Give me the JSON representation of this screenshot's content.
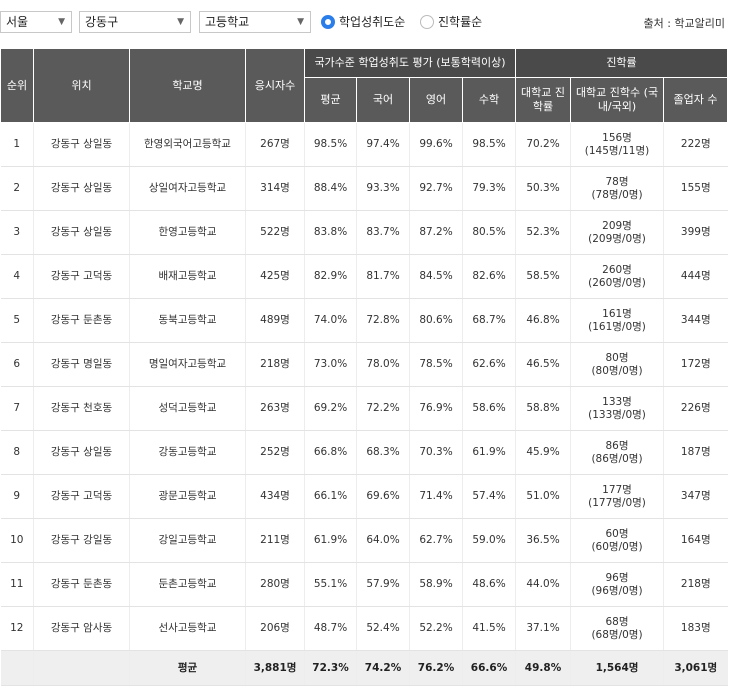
{
  "filters": {
    "region": "서울",
    "district": "강동구",
    "school_type": "고등학교",
    "sort_options": [
      {
        "label": "학업성취도순",
        "selected": true
      },
      {
        "label": "진학률순",
        "selected": false
      }
    ],
    "source": "출처 : 학교알리미"
  },
  "table": {
    "header": {
      "rank": "순위",
      "location": "위치",
      "school": "학교명",
      "applicants": "응시자수",
      "achievement_group": "국가수준 학업성취도 평가 (보통학력이상)",
      "avg": "평균",
      "korean": "국어",
      "english": "영어",
      "math": "수학",
      "advancement_group": "진학률",
      "univ_rate": "대학교 진학률",
      "univ_count": "대학교 진학수 (국내/국외)",
      "graduates": "졸업자 수"
    },
    "rows": [
      {
        "rank": "1",
        "location": "강동구 상일동",
        "school": "한영외국어고등학교",
        "applicants": "267명",
        "avg": "98.5%",
        "korean": "97.4%",
        "english": "99.6%",
        "math": "98.5%",
        "univ_rate": "70.2%",
        "univ_count": "156명",
        "univ_split": "(145명/11명)",
        "graduates": "222명"
      },
      {
        "rank": "2",
        "location": "강동구 상일동",
        "school": "상일여자고등학교",
        "applicants": "314명",
        "avg": "88.4%",
        "korean": "93.3%",
        "english": "92.7%",
        "math": "79.3%",
        "univ_rate": "50.3%",
        "univ_count": "78명",
        "univ_split": "(78명/0명)",
        "graduates": "155명"
      },
      {
        "rank": "3",
        "location": "강동구 상일동",
        "school": "한영고등학교",
        "applicants": "522명",
        "avg": "83.8%",
        "korean": "83.7%",
        "english": "87.2%",
        "math": "80.5%",
        "univ_rate": "52.3%",
        "univ_count": "209명",
        "univ_split": "(209명/0명)",
        "graduates": "399명"
      },
      {
        "rank": "4",
        "location": "강동구 고덕동",
        "school": "배재고등학교",
        "applicants": "425명",
        "avg": "82.9%",
        "korean": "81.7%",
        "english": "84.5%",
        "math": "82.6%",
        "univ_rate": "58.5%",
        "univ_count": "260명",
        "univ_split": "(260명/0명)",
        "graduates": "444명"
      },
      {
        "rank": "5",
        "location": "강동구 둔촌동",
        "school": "동북고등학교",
        "applicants": "489명",
        "avg": "74.0%",
        "korean": "72.8%",
        "english": "80.6%",
        "math": "68.7%",
        "univ_rate": "46.8%",
        "univ_count": "161명",
        "univ_split": "(161명/0명)",
        "graduates": "344명"
      },
      {
        "rank": "6",
        "location": "강동구 명일동",
        "school": "명일여자고등학교",
        "applicants": "218명",
        "avg": "73.0%",
        "korean": "78.0%",
        "english": "78.5%",
        "math": "62.6%",
        "univ_rate": "46.5%",
        "univ_count": "80명",
        "univ_split": "(80명/0명)",
        "graduates": "172명"
      },
      {
        "rank": "7",
        "location": "강동구 천호동",
        "school": "성덕고등학교",
        "applicants": "263명",
        "avg": "69.2%",
        "korean": "72.2%",
        "english": "76.9%",
        "math": "58.6%",
        "univ_rate": "58.8%",
        "univ_count": "133명",
        "univ_split": "(133명/0명)",
        "graduates": "226명"
      },
      {
        "rank": "8",
        "location": "강동구 상일동",
        "school": "강동고등학교",
        "applicants": "252명",
        "avg": "66.8%",
        "korean": "68.3%",
        "english": "70.3%",
        "math": "61.9%",
        "univ_rate": "45.9%",
        "univ_count": "86명",
        "univ_split": "(86명/0명)",
        "graduates": "187명"
      },
      {
        "rank": "9",
        "location": "강동구 고덕동",
        "school": "광문고등학교",
        "applicants": "434명",
        "avg": "66.1%",
        "korean": "69.6%",
        "english": "71.4%",
        "math": "57.4%",
        "univ_rate": "51.0%",
        "univ_count": "177명",
        "univ_split": "(177명/0명)",
        "graduates": "347명"
      },
      {
        "rank": "10",
        "location": "강동구 강일동",
        "school": "강일고등학교",
        "applicants": "211명",
        "avg": "61.9%",
        "korean": "64.0%",
        "english": "62.7%",
        "math": "59.0%",
        "univ_rate": "36.5%",
        "univ_count": "60명",
        "univ_split": "(60명/0명)",
        "graduates": "164명"
      },
      {
        "rank": "11",
        "location": "강동구 둔촌동",
        "school": "둔촌고등학교",
        "applicants": "280명",
        "avg": "55.1%",
        "korean": "57.9%",
        "english": "58.9%",
        "math": "48.6%",
        "univ_rate": "44.0%",
        "univ_count": "96명",
        "univ_split": "(96명/0명)",
        "graduates": "218명"
      },
      {
        "rank": "12",
        "location": "강동구 암사동",
        "school": "선사고등학교",
        "applicants": "206명",
        "avg": "48.7%",
        "korean": "52.4%",
        "english": "52.2%",
        "math": "41.5%",
        "univ_rate": "37.1%",
        "univ_count": "68명",
        "univ_split": "(68명/0명)",
        "graduates": "183명"
      }
    ],
    "summary": {
      "label": "평균",
      "applicants": "3,881명",
      "avg": "72.3%",
      "korean": "74.2%",
      "english": "76.2%",
      "math": "66.6%",
      "univ_rate": "49.8%",
      "univ_count": "1,564명",
      "graduates": "3,061명"
    }
  }
}
